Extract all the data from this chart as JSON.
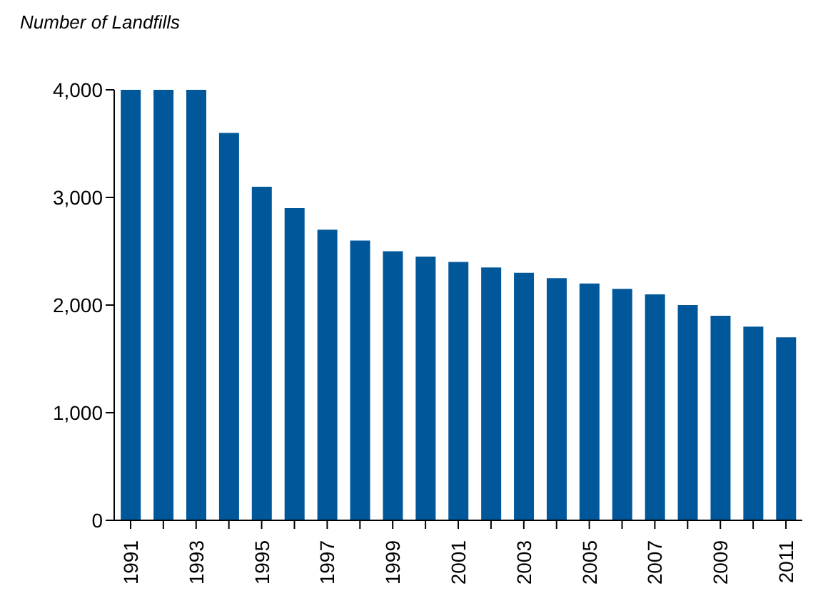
{
  "chart_data": {
    "type": "bar",
    "ylabel": "Number of Landfills",
    "categories": [
      "1991",
      null,
      "1993",
      null,
      "1995",
      null,
      "1997",
      null,
      "1999",
      null,
      "2001",
      null,
      "2003",
      null,
      "2005",
      null,
      "2007",
      null,
      "2009",
      null,
      "2011"
    ],
    "values": [
      4000,
      4000,
      4000,
      3600,
      3100,
      2900,
      2700,
      2600,
      2500,
      2450,
      2400,
      2350,
      2300,
      2250,
      2200,
      2150,
      2100,
      2000,
      1900,
      1800,
      1700
    ],
    "color": "#00589a",
    "ylim": [
      0,
      4000
    ],
    "yticks": [
      {
        "value": 0,
        "label": "0"
      },
      {
        "value": 1000,
        "label": "1,000"
      },
      {
        "value": 2000,
        "label": "2,000"
      },
      {
        "value": 3000,
        "label": "3,000"
      },
      {
        "value": 4000,
        "label": "4,000"
      }
    ],
    "grid": false
  }
}
